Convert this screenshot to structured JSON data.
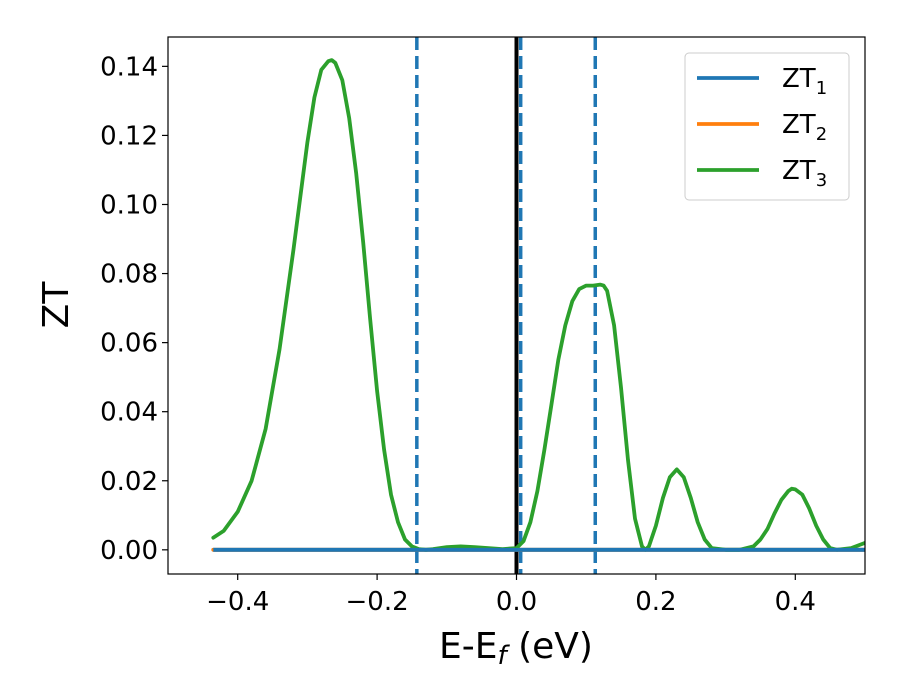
{
  "chart_data": {
    "type": "line",
    "xlabel": {
      "main": "E-E",
      "sub": "f",
      "unit": " (eV)"
    },
    "ylabel": "ZT",
    "xlim": [
      -0.5,
      0.5
    ],
    "ylim": [
      -0.007,
      0.1485
    ],
    "xticks": [
      -0.4,
      -0.2,
      0.0,
      0.2,
      0.4
    ],
    "xtick_labels": [
      "−0.4",
      "−0.2",
      "0.0",
      "0.2",
      "0.4"
    ],
    "yticks": [
      0.0,
      0.02,
      0.04,
      0.06,
      0.08,
      0.1,
      0.12,
      0.14
    ],
    "ytick_labels": [
      "0.00",
      "0.02",
      "0.04",
      "0.06",
      "0.08",
      "0.10",
      "0.12",
      "0.14"
    ],
    "grid": false,
    "legend_position": "top-right",
    "reference_lines": [
      {
        "x": 0.0,
        "style": "solid",
        "color": "#000000"
      },
      {
        "x": -0.143,
        "style": "dashed",
        "color": "#1f77b4"
      },
      {
        "x": 0.006,
        "style": "dashed",
        "color": "#1f77b4"
      },
      {
        "x": 0.113,
        "style": "dashed",
        "color": "#1f77b4"
      }
    ],
    "series": [
      {
        "name": "ZT",
        "sub": "1",
        "color": "#1f77b4",
        "x": [
          -0.435,
          0.5
        ],
        "y": [
          0.0,
          0.0
        ]
      },
      {
        "name": "ZT",
        "sub": "2",
        "color": "#ff7f0e",
        "x": [
          -0.435,
          0.5
        ],
        "y": [
          0.0,
          0.0
        ]
      },
      {
        "name": "ZT",
        "sub": "3",
        "color": "#2ca02c",
        "x": [
          -0.435,
          -0.42,
          -0.4,
          -0.38,
          -0.36,
          -0.34,
          -0.32,
          -0.3,
          -0.29,
          -0.28,
          -0.27,
          -0.265,
          -0.26,
          -0.25,
          -0.24,
          -0.23,
          -0.22,
          -0.21,
          -0.2,
          -0.19,
          -0.18,
          -0.17,
          -0.16,
          -0.15,
          -0.14,
          -0.13,
          -0.12,
          -0.1,
          -0.08,
          -0.06,
          -0.04,
          -0.02,
          0.0,
          0.01,
          0.02,
          0.03,
          0.04,
          0.05,
          0.06,
          0.07,
          0.08,
          0.09,
          0.1,
          0.11,
          0.12,
          0.125,
          0.13,
          0.14,
          0.15,
          0.16,
          0.17,
          0.18,
          0.185,
          0.19,
          0.2,
          0.21,
          0.22,
          0.23,
          0.24,
          0.25,
          0.26,
          0.27,
          0.28,
          0.3,
          0.32,
          0.34,
          0.35,
          0.36,
          0.37,
          0.38,
          0.39,
          0.395,
          0.4,
          0.41,
          0.42,
          0.43,
          0.44,
          0.45,
          0.46,
          0.48,
          0.5
        ],
        "y": [
          0.0035,
          0.0055,
          0.011,
          0.02,
          0.035,
          0.058,
          0.087,
          0.118,
          0.131,
          0.139,
          0.1415,
          0.1418,
          0.141,
          0.136,
          0.125,
          0.109,
          0.089,
          0.067,
          0.046,
          0.029,
          0.016,
          0.008,
          0.003,
          0.001,
          0.0002,
          0.0,
          0.0002,
          0.0008,
          0.001,
          0.0008,
          0.0005,
          0.0002,
          0.0005,
          0.0025,
          0.008,
          0.017,
          0.029,
          0.042,
          0.055,
          0.065,
          0.072,
          0.0755,
          0.0765,
          0.0765,
          0.0768,
          0.0765,
          0.075,
          0.065,
          0.047,
          0.026,
          0.009,
          0.001,
          0.0,
          0.001,
          0.007,
          0.015,
          0.021,
          0.0233,
          0.021,
          0.015,
          0.008,
          0.003,
          0.0005,
          0.0,
          0.0,
          0.001,
          0.003,
          0.006,
          0.0105,
          0.0145,
          0.017,
          0.0177,
          0.0175,
          0.016,
          0.012,
          0.007,
          0.003,
          0.0005,
          0.0,
          0.0005,
          0.002
        ]
      }
    ]
  }
}
